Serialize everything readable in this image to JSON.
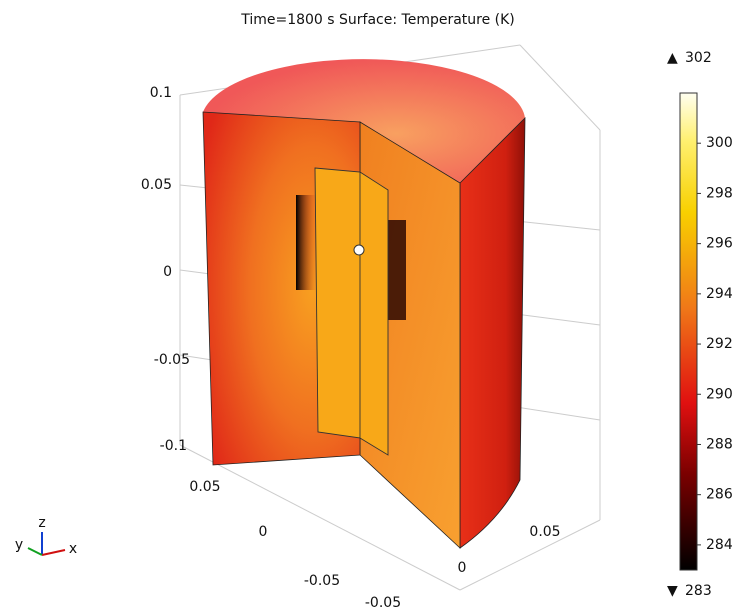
{
  "header": {
    "title": "Time=1800 s   Surface: Temperature (K)"
  },
  "z_axis": {
    "ticks": [
      "0.1",
      "0.05",
      "0",
      "-0.05",
      "-0.1"
    ]
  },
  "x_axis": {
    "ticks": [
      "0.05",
      "0",
      "-0.05"
    ]
  },
  "y_axis": {
    "ticks": [
      "0.05",
      "0",
      "-0.05"
    ]
  },
  "triad": {
    "x": "x",
    "y": "y",
    "z": "z"
  },
  "colorbar": {
    "max": 302,
    "min": 283,
    "ticks": [
      284,
      286,
      288,
      290,
      292,
      294,
      296,
      298,
      300
    ]
  }
}
